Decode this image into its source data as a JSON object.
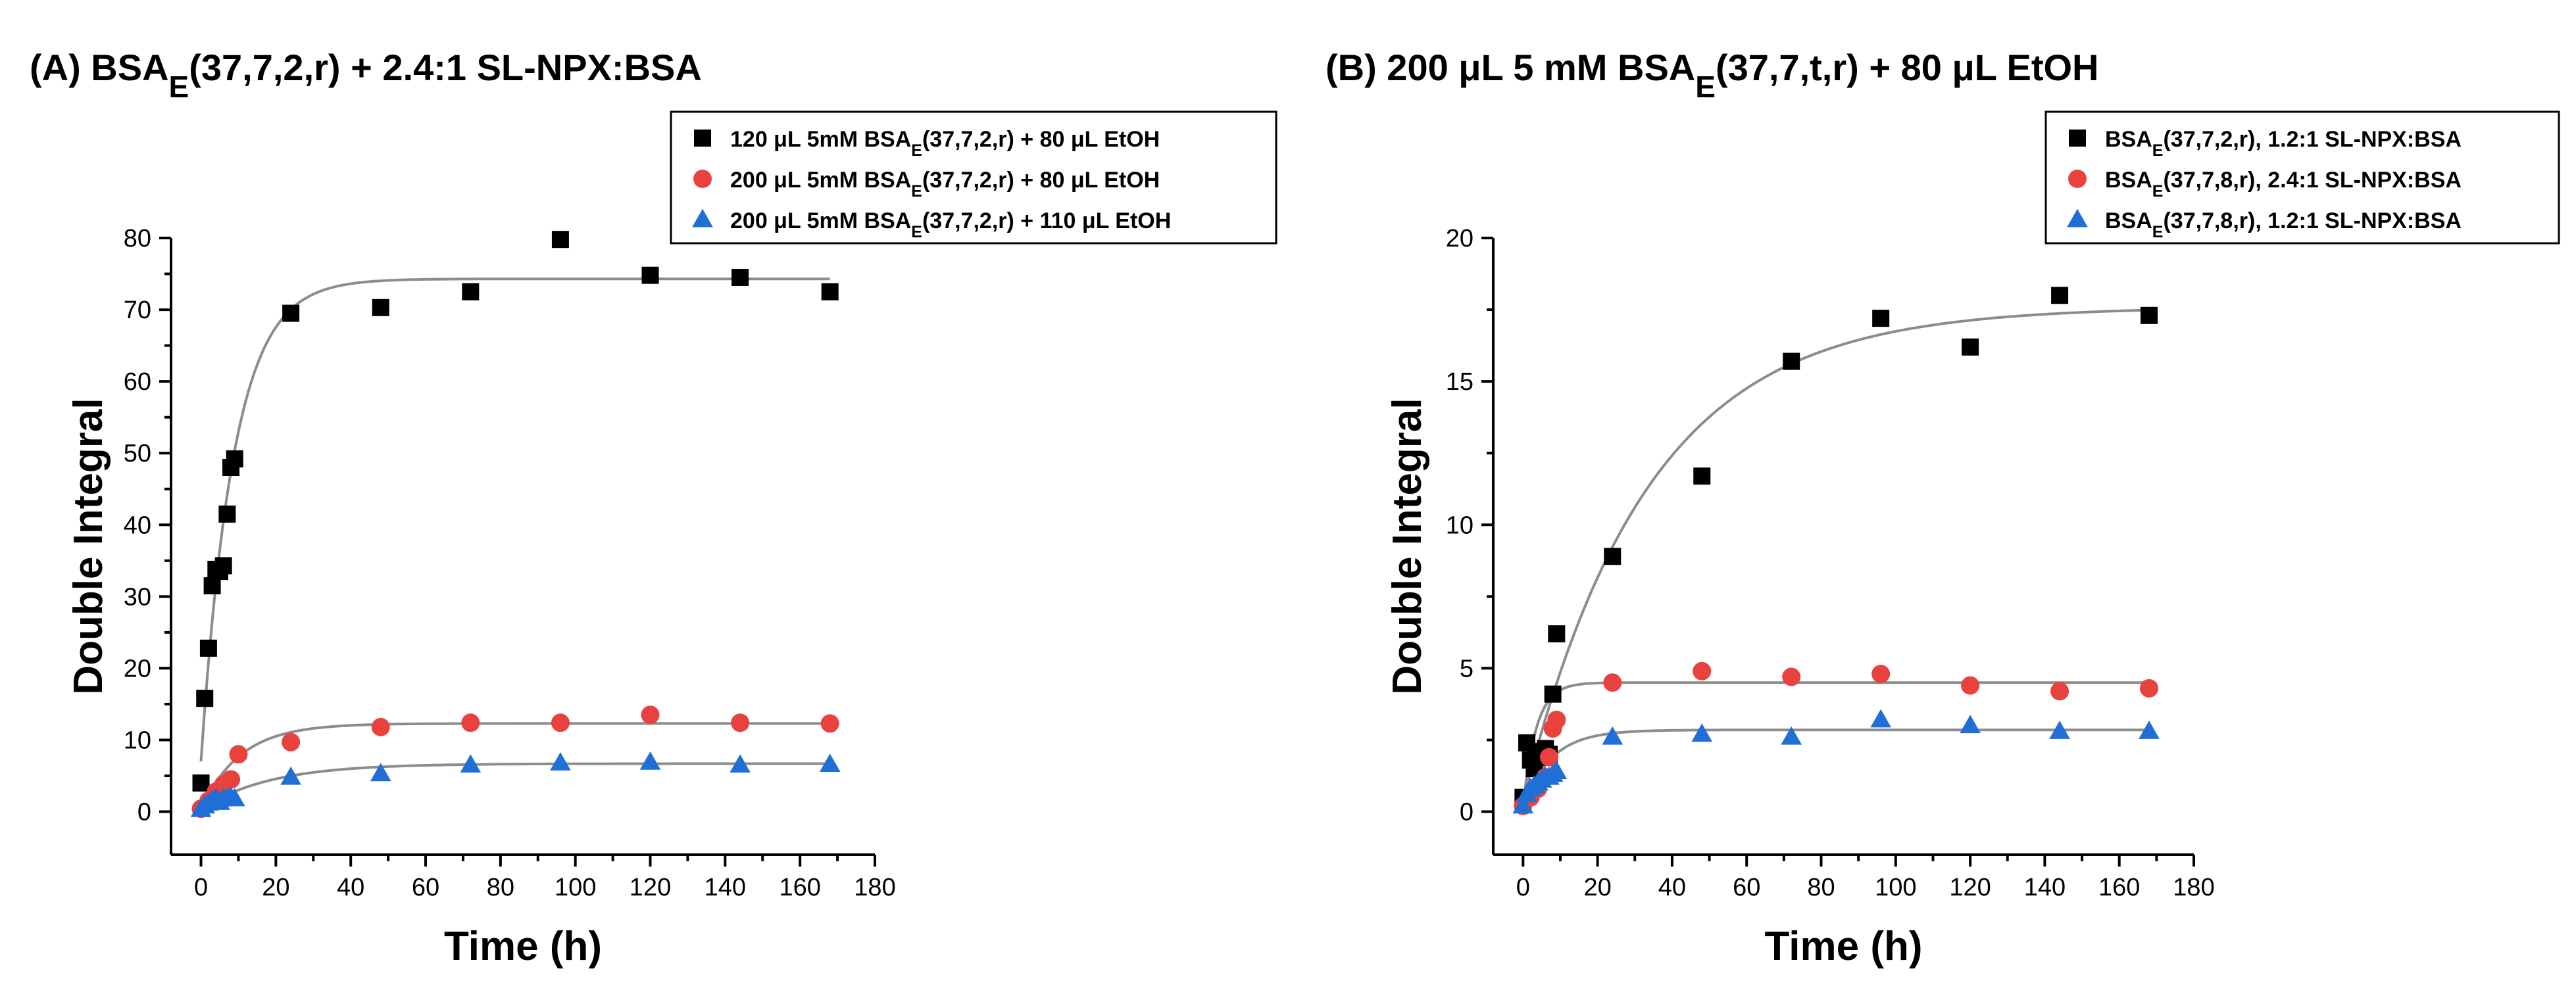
{
  "chart_data": [
    {
      "type": "scatter",
      "panel_label": "(A)",
      "title": "(A) BSAE(37,7,2,r) + 2.4:1 SL-NPX:BSA",
      "title_parts": {
        "pre": "(A) BSA",
        "sub": "E",
        "post": "(37,7,2,r) + 2.4:1 SL-NPX:BSA"
      },
      "xlabel": "Time (h)",
      "ylabel": "Double Integral",
      "xlim": [
        -8,
        180
      ],
      "ylim": [
        -6,
        80
      ],
      "xticks": [
        0,
        20,
        40,
        60,
        80,
        100,
        120,
        140,
        160,
        180
      ],
      "yticks": [
        0,
        10,
        20,
        30,
        40,
        50,
        60,
        70,
        80
      ],
      "legend_position": "top-right",
      "fit_color": "#8c8c8c",
      "series": [
        {
          "name": "120 μL 5mM BSAE(37,7,2,r) + 80 μL EtOH",
          "name_parts": {
            "pre": "120 μL 5mM BSA",
            "sub": "E",
            "post": "(37,7,2,r) + 80 μL EtOH"
          },
          "marker": "square",
          "color": "#000000",
          "x": [
            0,
            1,
            2,
            3,
            4,
            5,
            6,
            7,
            8,
            9,
            24,
            48,
            72,
            96,
            120,
            144,
            168
          ],
          "y": [
            4.0,
            15.8,
            22.8,
            31.5,
            33.8,
            33.5,
            34.3,
            41.5,
            48.0,
            49.2,
            69.5,
            70.3,
            72.5,
            79.8,
            74.8,
            74.5,
            72.5
          ],
          "fit": {
            "a": 74.3,
            "b": 7.0,
            "k": 0.115
          }
        },
        {
          "name": "200 μL 5mM BSAE(37,7,2,r) + 80 μL EtOH",
          "name_parts": {
            "pre": "200 μL 5mM BSA",
            "sub": "E",
            "post": "(37,7,2,r) + 80 μL EtOH"
          },
          "marker": "circle",
          "color": "#e8413e",
          "x": [
            0,
            2,
            4,
            6,
            8,
            10,
            24,
            48,
            72,
            96,
            120,
            144,
            168
          ],
          "y": [
            0.4,
            1.5,
            2.8,
            3.8,
            4.5,
            8.0,
            9.7,
            11.8,
            12.4,
            12.4,
            13.5,
            12.4,
            12.3
          ],
          "fit": {
            "a": 12.3,
            "b": 0.3,
            "k": 0.095
          }
        },
        {
          "name": "200 μL 5mM BSAE(37,7,2,r) + 110 μL EtOH",
          "name_parts": {
            "pre": "200 μL 5mM BSA",
            "sub": "E",
            "post": "(37,7,2,r) + 110 μL EtOH"
          },
          "marker": "triangle",
          "color": "#1f6fd6",
          "x": [
            0,
            1,
            2,
            3,
            4,
            5,
            6,
            7,
            8,
            9,
            24,
            48,
            72,
            96,
            120,
            144,
            168
          ],
          "y": [
            0.3,
            0.8,
            1.2,
            1.5,
            1.8,
            1.3,
            1.8,
            1.9,
            2.0,
            1.8,
            4.8,
            5.3,
            6.5,
            6.8,
            6.9,
            6.5,
            6.6
          ],
          "fit": {
            "a": 6.7,
            "b": 0.3,
            "k": 0.055
          }
        }
      ]
    },
    {
      "type": "scatter",
      "panel_label": "(B)",
      "title": "(B) 200 μL 5 mM BSAE(37,7,t,r) + 80 μL EtOH",
      "title_parts": {
        "pre": "(B) 200 μL 5 mM BSA",
        "sub": "E",
        "post": "(37,7,t,r) + 80 μL EtOH"
      },
      "xlabel": "Time (h)",
      "ylabel": "Double Integral",
      "xlim": [
        -8,
        180
      ],
      "ylim": [
        -1.5,
        20
      ],
      "xticks": [
        0,
        20,
        40,
        60,
        80,
        100,
        120,
        140,
        160,
        180
      ],
      "yticks": [
        0,
        5,
        10,
        15,
        20
      ],
      "legend_position": "top-right",
      "fit_color": "#8c8c8c",
      "series": [
        {
          "name": "BSAE(37,7,2,r), 1.2:1 SL-NPX:BSA",
          "name_parts": {
            "pre": "BSA",
            "sub": "E",
            "post": "(37,7,2,r), 1.2:1 SL-NPX:BSA"
          },
          "marker": "square",
          "color": "#000000",
          "x": [
            0,
            1,
            2,
            3,
            4,
            5,
            6,
            7,
            8,
            9,
            24,
            48,
            72,
            96,
            120,
            144,
            168
          ],
          "y": [
            0.5,
            2.4,
            1.8,
            1.5,
            1.9,
            2.1,
            2.2,
            2.0,
            4.1,
            6.2,
            8.9,
            11.7,
            15.7,
            17.2,
            16.2,
            18.0,
            17.3
          ],
          "fit": {
            "a": 17.6,
            "b": 0.4,
            "k": 0.03
          }
        },
        {
          "name": "BSAE(37,7,8,r), 2.4:1 SL-NPX:BSA",
          "name_parts": {
            "pre": "BSA",
            "sub": "E",
            "post": "(37,7,8,r), 2.4:1 SL-NPX:BSA"
          },
          "marker": "circle",
          "color": "#e8413e",
          "x": [
            0,
            2,
            4,
            6,
            7,
            8,
            9,
            24,
            48,
            72,
            96,
            120,
            144,
            168
          ],
          "y": [
            0.2,
            0.5,
            0.8,
            1.2,
            1.9,
            2.9,
            3.2,
            4.5,
            4.9,
            4.7,
            4.8,
            4.4,
            4.2,
            4.3
          ],
          "fit": {
            "a": 4.5,
            "b": 0.2,
            "k": 0.28
          }
        },
        {
          "name": "BSAE(37,7,8,r), 1.2:1 SL-NPX:BSA",
          "name_parts": {
            "pre": "BSA",
            "sub": "E",
            "post": "(37,7,8,r), 1.2:1 SL-NPX:BSA"
          },
          "marker": "triangle",
          "color": "#1f6fd6",
          "x": [
            0,
            1,
            2,
            3,
            4,
            5,
            6,
            7,
            8,
            9,
            24,
            48,
            72,
            96,
            120,
            144,
            168
          ],
          "y": [
            0.2,
            0.6,
            0.8,
            0.9,
            1.0,
            1.1,
            1.2,
            1.2,
            1.3,
            1.4,
            2.6,
            2.7,
            2.6,
            3.2,
            3.0,
            2.8,
            2.8
          ],
          "fit": {
            "a": 2.85,
            "b": 0.2,
            "k": 0.13
          }
        }
      ]
    }
  ]
}
